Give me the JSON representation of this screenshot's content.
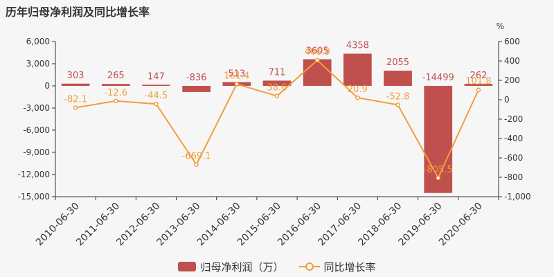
{
  "page": {
    "title": "历年归母净利润及同比增长率"
  },
  "colors": {
    "bar": "#c0504d",
    "line": "#f29d3c",
    "axis": "#333333",
    "grid": "#e0e0e0"
  },
  "legend": {
    "bar_label": "归母净利润（万）",
    "line_label": "同比增长率"
  },
  "chart_data": {
    "type": "bar",
    "title": "历年归母净利润及同比增长率",
    "categories": [
      "2010-06-30",
      "2011-06-30",
      "2012-06-30",
      "2013-06-30",
      "2014-06-30",
      "2015-06-30",
      "2016-06-30",
      "2017-06-30",
      "2018-06-30",
      "2019-06-30",
      "2020-06-30"
    ],
    "series": [
      {
        "name": "归母净利润（万）",
        "type": "bar",
        "axis": "left",
        "values": [
          303,
          265,
          147,
          -836,
          513,
          711,
          3605,
          4358,
          2055,
          -14499,
          262
        ],
        "labels": [
          "303",
          "265",
          "147",
          "-836",
          "513",
          "711",
          "3605",
          "4358",
          "2055",
          "-14499",
          "262"
        ]
      },
      {
        "name": "同比增长率",
        "type": "line",
        "axis": "right",
        "values": [
          -82.1,
          -12.6,
          -44.5,
          -669.1,
          161.4,
          38.6,
          406.9,
          20.9,
          -52.8,
          -805.5,
          101.8
        ],
        "labels": [
          "-82.1",
          "-12.6",
          "-44.5",
          "-669.1",
          "161.4",
          "38.6",
          "406.9",
          "20.9",
          "-52.8",
          "-805.5",
          "101.8"
        ]
      }
    ],
    "y_left": {
      "min": -15000,
      "max": 6000,
      "ticks": [
        6000,
        3000,
        0,
        -3000,
        -6000,
        -9000,
        -12000,
        -15000
      ],
      "tick_labels": [
        "6,000",
        "3,000",
        "0",
        "-3,000",
        "-6,000",
        "-9,000",
        "-12,000",
        "-15,000"
      ]
    },
    "y_right": {
      "min": -1000,
      "max": 600,
      "unit": "%",
      "ticks": [
        600,
        400,
        200,
        0,
        -200,
        -400,
        -600,
        -800,
        -1000
      ],
      "tick_labels": [
        "600",
        "400",
        "200",
        "0",
        "-200",
        "-400",
        "-600",
        "-800",
        "-1,000"
      ]
    },
    "grid": false,
    "legend_position": "bottom-center"
  }
}
